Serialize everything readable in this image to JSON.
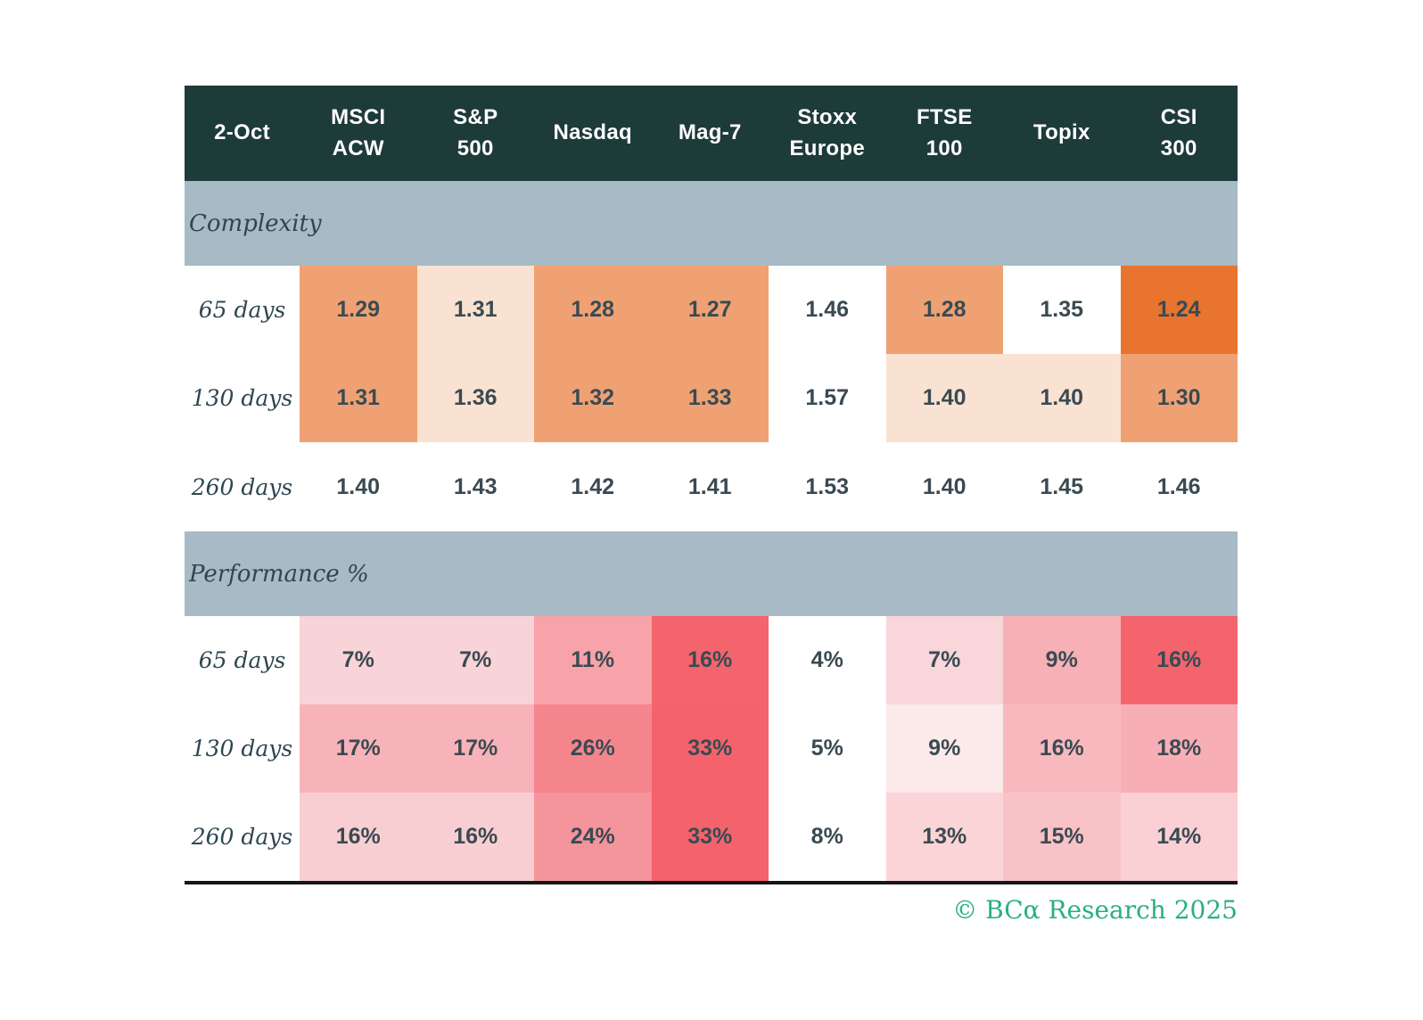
{
  "chart_data": {
    "type": "heatmap",
    "title": "2-Oct",
    "columns": [
      "MSCI ACW",
      "S&P 500",
      "Nasdaq",
      "Mag-7",
      "Stoxx Europe",
      "FTSE 100",
      "Topix",
      "CSI 300"
    ],
    "sections": [
      {
        "name": "Complexity",
        "rows": [
          {
            "label": "65 days",
            "values": [
              1.29,
              1.31,
              1.28,
              1.27,
              1.46,
              1.28,
              1.35,
              1.24
            ]
          },
          {
            "label": "130 days",
            "values": [
              1.31,
              1.36,
              1.32,
              1.33,
              1.57,
              1.4,
              1.4,
              1.3
            ]
          },
          {
            "label": "260 days",
            "values": [
              1.4,
              1.43,
              1.42,
              1.41,
              1.53,
              1.4,
              1.45,
              1.46
            ]
          }
        ]
      },
      {
        "name": "Performance %",
        "rows": [
          {
            "label": "65 days",
            "values": [
              7,
              7,
              11,
              16,
              4,
              7,
              9,
              16
            ]
          },
          {
            "label": "130 days",
            "values": [
              17,
              17,
              26,
              33,
              5,
              9,
              16,
              18
            ]
          },
          {
            "label": "260 days",
            "values": [
              16,
              16,
              24,
              33,
              8,
              13,
              15,
              14
            ]
          }
        ]
      }
    ],
    "layout": {
      "grid": false,
      "legend": "none",
      "color_encoding": "orange scale for Complexity (lower = deeper orange), red/pink scale for Performance % (higher = deeper red)"
    }
  },
  "table": {
    "date_label": "2-Oct",
    "columns": [
      "MSCI\nACW",
      "S&P\n500",
      "Nasdaq",
      "Mag-7",
      "Stoxx\nEurope",
      "FTSE\n100",
      "Topix",
      "CSI\n300"
    ],
    "sections": [
      {
        "label": "Complexity",
        "rows": [
          {
            "label": "65 days",
            "cells": [
              {
                "v": "1.29",
                "bg": "#efa173"
              },
              {
                "v": "1.31",
                "bg": "#f9e2d2"
              },
              {
                "v": "1.28",
                "bg": "#efa173"
              },
              {
                "v": "1.27",
                "bg": "#efa173"
              },
              {
                "v": "1.46",
                "bg": "#ffffff"
              },
              {
                "v": "1.28",
                "bg": "#efa173"
              },
              {
                "v": "1.35",
                "bg": "#ffffff"
              },
              {
                "v": "1.24",
                "bg": "#e8742e"
              }
            ]
          },
          {
            "label": "130 days",
            "cells": [
              {
                "v": "1.31",
                "bg": "#efa173"
              },
              {
                "v": "1.36",
                "bg": "#f9e2d2"
              },
              {
                "v": "1.32",
                "bg": "#efa173"
              },
              {
                "v": "1.33",
                "bg": "#efa173"
              },
              {
                "v": "1.57",
                "bg": "#ffffff"
              },
              {
                "v": "1.40",
                "bg": "#f9e2d2"
              },
              {
                "v": "1.40",
                "bg": "#f9e2d2"
              },
              {
                "v": "1.30",
                "bg": "#efa173"
              }
            ]
          },
          {
            "label": "260 days",
            "cells": [
              {
                "v": "1.40",
                "bg": "#ffffff"
              },
              {
                "v": "1.43",
                "bg": "#ffffff"
              },
              {
                "v": "1.42",
                "bg": "#ffffff"
              },
              {
                "v": "1.41",
                "bg": "#ffffff"
              },
              {
                "v": "1.53",
                "bg": "#ffffff"
              },
              {
                "v": "1.40",
                "bg": "#ffffff"
              },
              {
                "v": "1.45",
                "bg": "#ffffff"
              },
              {
                "v": "1.46",
                "bg": "#ffffff"
              }
            ]
          }
        ]
      },
      {
        "label": "Performance %",
        "rows": [
          {
            "label": "65 days",
            "cells": [
              {
                "v": "7%",
                "bg": "#f8d3d7"
              },
              {
                "v": "7%",
                "bg": "#f8d3d7"
              },
              {
                "v": "11%",
                "bg": "#f7a3a9"
              },
              {
                "v": "16%",
                "bg": "#f4646d"
              },
              {
                "v": "4%",
                "bg": "#ffffff"
              },
              {
                "v": "7%",
                "bg": "#f9d6da"
              },
              {
                "v": "9%",
                "bg": "#f6b0b6"
              },
              {
                "v": "16%",
                "bg": "#f4646d"
              }
            ]
          },
          {
            "label": "130 days",
            "cells": [
              {
                "v": "17%",
                "bg": "#f7b3b9"
              },
              {
                "v": "17%",
                "bg": "#f7b3b9"
              },
              {
                "v": "26%",
                "bg": "#f5858d"
              },
              {
                "v": "33%",
                "bg": "#f4636c"
              },
              {
                "v": "5%",
                "bg": "#ffffff"
              },
              {
                "v": "9%",
                "bg": "#fce9ea"
              },
              {
                "v": "16%",
                "bg": "#f8b9be"
              },
              {
                "v": "18%",
                "bg": "#f7afb5"
              }
            ]
          },
          {
            "label": "260 days",
            "cells": [
              {
                "v": "16%",
                "bg": "#f9ced2"
              },
              {
                "v": "16%",
                "bg": "#f9ced2"
              },
              {
                "v": "24%",
                "bg": "#f4949b"
              },
              {
                "v": "33%",
                "bg": "#f4636c"
              },
              {
                "v": "8%",
                "bg": "#ffffff"
              },
              {
                "v": "13%",
                "bg": "#fbd4d8"
              },
              {
                "v": "15%",
                "bg": "#f9c2c7"
              },
              {
                "v": "14%",
                "bg": "#fad0d5"
              }
            ]
          }
        ]
      }
    ]
  },
  "footer": {
    "credit": "© BCα Research 2025"
  },
  "theme": {
    "header_bg": "#1d3b39",
    "band_bg": "#a7bac5",
    "cell_text": "#3a4a52",
    "footer_green": "#2aaf81",
    "bottom_rule": "#161616",
    "orange_strong": "#e8742e",
    "orange_medium": "#efa173",
    "orange_light": "#f9e2d2",
    "red_strong": "#f4636c",
    "pink_medium": "#f7a3a9",
    "pink_light": "#f8d3d7"
  }
}
